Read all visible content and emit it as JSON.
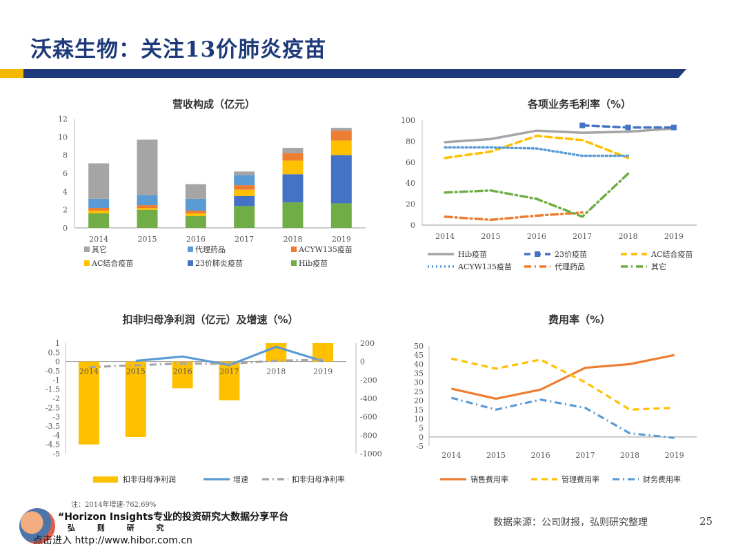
{
  "slide": {
    "title": "沃森生物：关注13价肺炎疫苗",
    "source": "数据来源：公司财报，弘则研究整理",
    "page_number": "25",
    "note": "注：2014年增速-762.69%",
    "colors": {
      "navy": "#1f3a7a",
      "gold": "#f5b800"
    }
  },
  "watermark": {
    "line1": "“Horizon Insights专业的投资研究大数据分享平台",
    "line2": "弘 则 研 究",
    "line3": "点击进入 http://www.hibor.com.cn"
  },
  "chart_data": [
    {
      "type": "bar",
      "stacked": true,
      "title": "营收构成（亿元）",
      "categories": [
        "2014",
        "2015",
        "2016",
        "2017",
        "2018",
        "2019"
      ],
      "ylim": [
        0,
        12
      ],
      "yticks": [
        "0",
        "2",
        "4",
        "6",
        "8",
        "10",
        "12"
      ],
      "series": [
        {
          "name": "Hib疫苗",
          "color": "#70ad47",
          "values": [
            1.6,
            2.0,
            1.3,
            2.4,
            2.8,
            2.7
          ]
        },
        {
          "name": "23价肺炎疫苗",
          "color": "#4472c4",
          "values": [
            0,
            0,
            0,
            1.1,
            3.1,
            5.3
          ]
        },
        {
          "name": "AC结合疫苗",
          "color": "#ffc000",
          "values": [
            0.3,
            0.2,
            0.3,
            0.7,
            1.5,
            1.6
          ]
        },
        {
          "name": "ACYW135疫苗",
          "color": "#ed7d31",
          "values": [
            0.3,
            0.3,
            0.3,
            0.5,
            0.8,
            1.1
          ]
        },
        {
          "name": "代理药品",
          "color": "#5b9bd5",
          "values": [
            1.0,
            1.1,
            1.3,
            1.1,
            0,
            0
          ]
        },
        {
          "name": "其它",
          "color": "#a5a5a5",
          "values": [
            3.9,
            6.1,
            1.6,
            0.4,
            0.6,
            0.3
          ]
        }
      ],
      "legend_order": [
        "其它",
        "代理药品",
        "ACYW135疫苗",
        "AC结合疫苗",
        "23价肺炎疫苗",
        "Hib疫苗"
      ],
      "legend": "bottom"
    },
    {
      "type": "line",
      "title": "各项业务毛利率（%）",
      "categories": [
        "2014",
        "2015",
        "2016",
        "2017",
        "2018",
        "2019"
      ],
      "ylim": [
        0,
        100
      ],
      "yticks": [
        "0",
        "20",
        "40",
        "60",
        "80",
        "100"
      ],
      "series": [
        {
          "name": "Hib疫苗",
          "color": "#a5a5a5",
          "style": "solid",
          "values": [
            79,
            82,
            90,
            88,
            89,
            92
          ]
        },
        {
          "name": "23价疫苗",
          "color": "#4472c4",
          "style": "dash-marker",
          "values": [
            null,
            null,
            null,
            95,
            93,
            93
          ]
        },
        {
          "name": "AC结合疫苗",
          "color": "#ffc000",
          "style": "dash",
          "values": [
            64,
            70,
            85,
            81,
            64,
            null
          ]
        },
        {
          "name": "ACYW135疫苗",
          "color": "#5b9bd5",
          "style": "dot",
          "values": [
            74,
            74,
            73,
            66,
            66,
            null
          ]
        },
        {
          "name": "代理药品",
          "color": "#ed7d31",
          "style": "dashdot",
          "values": [
            8,
            5,
            9,
            12,
            null,
            null
          ]
        },
        {
          "name": "其它",
          "color": "#70ad47",
          "style": "dashdot",
          "values": [
            31,
            33,
            25,
            8,
            49,
            null
          ]
        }
      ],
      "legend": "bottom"
    },
    {
      "type": "bar",
      "title": "扣非归母净利润（亿元）及增速（%）",
      "categories": [
        "2014",
        "2015",
        "2016",
        "2017",
        "2018",
        "2019"
      ],
      "ylim": [
        -5,
        1
      ],
      "yticks": [
        "1",
        "0.5",
        "0",
        "-0.5",
        "-1",
        "-1.5",
        "-2",
        "-2.5",
        "-3",
        "-3.5",
        "-4",
        "-4.5",
        "-5"
      ],
      "y2lim": [
        -1000,
        200
      ],
      "y2ticks": [
        "200",
        "0",
        "-200",
        "-400",
        "-600",
        "-800",
        "-1000"
      ],
      "series": [
        {
          "name": "扣非归母净利润",
          "color": "#ffc000",
          "kind": "bar",
          "axis": "left",
          "values": [
            -4.5,
            -4.1,
            -1.45,
            -2.1,
            1.0,
            1.0
          ]
        },
        {
          "name": "增速",
          "color": "#5b9bd5",
          "kind": "line",
          "axis": "right",
          "values": [
            null,
            8,
            55,
            -38,
            160,
            5
          ]
        },
        {
          "name": "扣非归母净利率",
          "color": "#a5a5a5",
          "kind": "dashdot",
          "axis": "right",
          "values": [
            -60,
            -40,
            -20,
            -25,
            10,
            20
          ]
        }
      ],
      "legend": "bottom"
    },
    {
      "type": "line",
      "title": "费用率（%）",
      "categories": [
        "2014",
        "2015",
        "2016",
        "2017",
        "2018",
        "2019"
      ],
      "ylim": [
        -5,
        50
      ],
      "yticks": [
        "50",
        "45",
        "40",
        "35",
        "30",
        "25",
        "20",
        "15",
        "10",
        "5",
        "0",
        "-5"
      ],
      "series": [
        {
          "name": "销售费用率",
          "color": "#ed7d31",
          "style": "solid",
          "values": [
            26.5,
            21,
            26,
            38,
            40,
            45
          ]
        },
        {
          "name": "管理费用率",
          "color": "#ffc000",
          "style": "dash",
          "values": [
            43,
            37.5,
            42.5,
            30,
            15,
            16
          ]
        },
        {
          "name": "财务费用率",
          "color": "#5b9bd5",
          "style": "dashdot",
          "values": [
            21.5,
            15,
            20.5,
            16,
            2,
            -0.5
          ]
        }
      ],
      "legend": "bottom"
    }
  ]
}
